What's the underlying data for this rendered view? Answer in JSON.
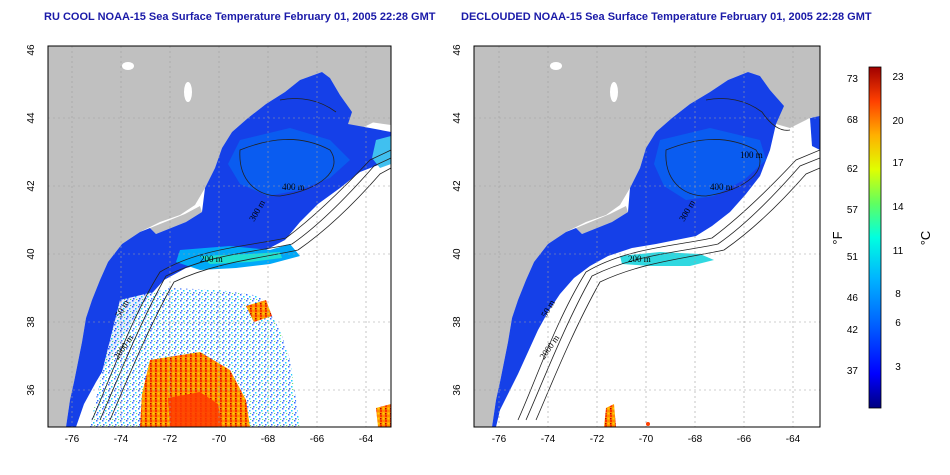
{
  "titles": {
    "left": "RU COOL NOAA-15 Sea Surface Temperature February 01, 2005 22:28 GMT",
    "right": "DECLOUDED NOAA-15 Sea Surface Temperature February 01, 2005 22:28 GMT"
  },
  "axes": {
    "lon_ticks": [
      "-76",
      "-74",
      "-72",
      "-70",
      "-68",
      "-66",
      "-64"
    ],
    "lat_ticks": [
      "46",
      "44",
      "42",
      "40",
      "38",
      "36"
    ]
  },
  "contour_labels": {
    "left": [
      "400 m",
      "300 m",
      "200 m",
      "50 m",
      "2000 m"
    ],
    "right": [
      "100 m",
      "400 m",
      "300 m",
      "200 m",
      "50 m",
      "2000 m"
    ]
  },
  "colorbar": {
    "fahrenheit_ticks": [
      "73",
      "68",
      "62",
      "57",
      "51",
      "46",
      "42",
      "37"
    ],
    "celsius_ticks": [
      "23",
      "20",
      "17",
      "14",
      "11",
      "8",
      "6",
      "3"
    ],
    "fahrenheit_unit": "°F",
    "celsius_unit": "°C",
    "colors": [
      "#000080",
      "#0000ff",
      "#0064ff",
      "#00b4ff",
      "#00ffe0",
      "#60ff60",
      "#e0ff00",
      "#ffb000",
      "#ff4000",
      "#a00000"
    ]
  },
  "colors": {
    "land": "#c0c0c0",
    "cold_water": "#1540e8",
    "title": "#1a1aa8"
  }
}
